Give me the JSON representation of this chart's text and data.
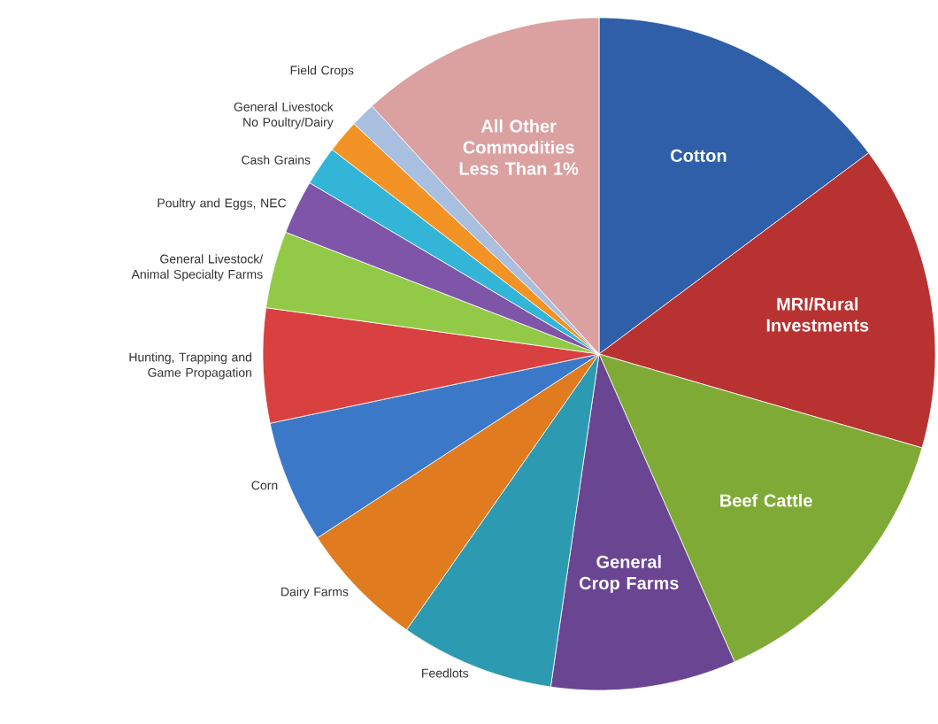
{
  "chart_data": {
    "type": "pie",
    "categories": [
      "Cotton",
      "MRI/Rural Investments",
      "Beef Cattle",
      "General Crop Farms",
      "Feedlots",
      "Dairy Farms",
      "Corn",
      "Hunting, Trapping and Game Propagation",
      "General Livestock/ Animal Specialty Farms",
      "Poultry and Eggs, NEC",
      "Cash Grains",
      "General Livestock No Poultry/Dairy",
      "Field Crops",
      "All Other Commodities Less Than 1%"
    ],
    "values": [
      14.8,
      14.7,
      13.9,
      8.9,
      7.4,
      6.1,
      5.9,
      5.5,
      3.7,
      2.6,
      1.9,
      1.6,
      1.2,
      11.8
    ],
    "colors": [
      "#2e5fa8",
      "#b83232",
      "#7faa35",
      "#6a4592",
      "#2c9ab0",
      "#e07b20",
      "#3b78c8",
      "#d94040",
      "#92c947",
      "#7e55a8",
      "#33b5d8",
      "#f39325",
      "#a9bfe0",
      "#dba0a0"
    ]
  }
}
